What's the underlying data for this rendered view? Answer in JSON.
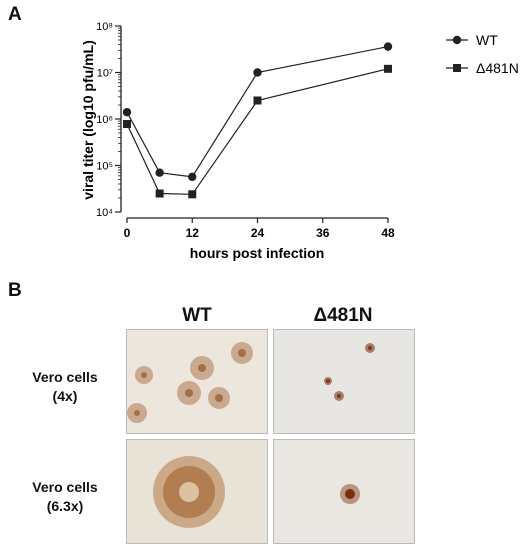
{
  "panel_a_letter": "A",
  "panel_b_letter": "B",
  "chart_data": {
    "type": "line",
    "xlabel": "hours post infection",
    "ylabel": "viral titer (log10 pfu/mL)",
    "yscale": "log",
    "ylim": [
      10000,
      100000000
    ],
    "xlim": [
      0,
      48
    ],
    "xticks": [
      0,
      12,
      24,
      36,
      48
    ],
    "yticks": [
      10000,
      100000,
      1000000,
      10000000,
      100000000
    ],
    "ytick_labels": [
      "10⁴",
      "10⁵",
      "10⁶",
      "10⁷",
      "10⁸"
    ],
    "legend_position": "top-right",
    "x": [
      0,
      6,
      12,
      24,
      48
    ],
    "series": [
      {
        "name": "WT",
        "marker": "circle",
        "values": [
          1400000,
          70000,
          57000,
          10000000,
          36000000
        ]
      },
      {
        "name": "Δ481N",
        "marker": "square",
        "values": [
          780000,
          25000,
          24000,
          2500000,
          12000000
        ]
      }
    ]
  },
  "panel_b": {
    "columns": [
      "WT",
      "Δ481N"
    ],
    "rows": [
      {
        "label_line1": "Vero cells",
        "label_line2": "(4x)"
      },
      {
        "label_line1": "Vero cells",
        "label_line2": "(6.3x)"
      }
    ]
  },
  "colors": {
    "line": "#222222",
    "stain": "#8b4513",
    "background_tissue": "#ece6dc"
  }
}
